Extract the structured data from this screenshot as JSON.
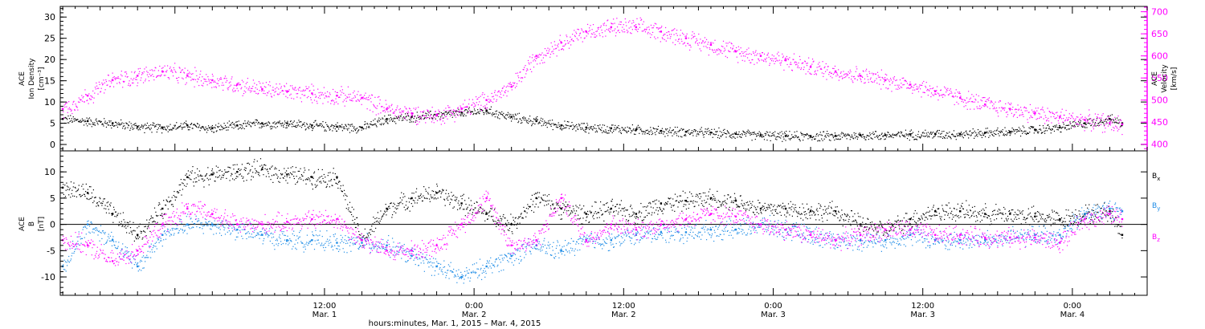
{
  "figure": {
    "x_axis_title": "hours:minutes, Mar.  1, 2015 – Mar.  4, 2015",
    "x_tick_labels": [
      {
        "time": "12:00",
        "date": "Mar. 1"
      },
      {
        "time": "0:00",
        "date": "Mar. 2"
      },
      {
        "time": "12:00",
        "date": "Mar. 2"
      },
      {
        "time": "0:00",
        "date": "Mar. 3"
      },
      {
        "time": "12:00",
        "date": "Mar. 3"
      },
      {
        "time": "0:00",
        "date": "Mar. 4"
      }
    ]
  },
  "chart_data": [
    {
      "type": "scatter",
      "panel": "top",
      "left_axis": {
        "lines": [
          "ACE",
          "Ion Density",
          "[cm⁻³]"
        ],
        "ylim": [
          -1.5,
          32.5
        ],
        "ticks": [
          0,
          5,
          10,
          15,
          20,
          25,
          30
        ]
      },
      "right_axis": {
        "lines": [
          "ACE",
          "Velocity",
          "[km/s]"
        ],
        "ylim": [
          385,
          712
        ],
        "ticks": [
          400,
          450,
          500,
          550,
          600,
          650,
          700
        ],
        "color": "#ff00ff"
      },
      "x_unit": "hours since Mar. 1 00:00",
      "xlim": [
        -9.2,
        78.0
      ],
      "series": [
        {
          "axis": "left",
          "color": "#000000",
          "x": [
            -9,
            -7,
            -5,
            -3,
            -1,
            1,
            3,
            5,
            7,
            9,
            11,
            13,
            15,
            17,
            19,
            21,
            23,
            25,
            27,
            29,
            31,
            33,
            35,
            37,
            39,
            41,
            43,
            45,
            47,
            49,
            51,
            53,
            55,
            57,
            59,
            61,
            63,
            65,
            67,
            69,
            71,
            73,
            75,
            76
          ],
          "values": [
            6,
            5.5,
            5,
            4.2,
            4,
            4.5,
            3.8,
            4.5,
            5,
            5,
            4.5,
            4.2,
            4,
            6,
            6.5,
            7,
            7.5,
            8,
            6.5,
            5.5,
            4.5,
            4,
            3.8,
            3.5,
            3.2,
            3,
            2.8,
            2.5,
            2.2,
            2,
            2,
            2,
            2.2,
            2.2,
            2.4,
            2.5,
            2.5,
            2.8,
            3,
            3.5,
            4,
            5,
            6,
            5
          ]
        },
        {
          "axis": "right",
          "color": "#ff00ff",
          "x": [
            -9,
            -7,
            -5,
            -3,
            -1,
            1,
            3,
            5,
            7,
            9,
            11,
            13,
            15,
            17,
            19,
            21,
            23,
            25,
            27,
            29,
            31,
            33,
            35,
            37,
            39,
            41,
            43,
            45,
            47,
            49,
            51,
            53,
            55,
            57,
            59,
            61,
            63,
            65,
            67,
            69,
            71,
            73,
            75,
            76
          ],
          "values": [
            480,
            510,
            545,
            555,
            565,
            555,
            545,
            535,
            525,
            520,
            515,
            510,
            505,
            480,
            470,
            465,
            480,
            500,
            530,
            600,
            630,
            655,
            665,
            665,
            655,
            640,
            625,
            610,
            600,
            590,
            575,
            565,
            555,
            545,
            535,
            520,
            505,
            490,
            480,
            470,
            462,
            455,
            448,
            445
          ]
        }
      ]
    },
    {
      "type": "scatter",
      "panel": "bottom",
      "left_axis": {
        "lines": [
          "ACE",
          "B",
          "[nT]"
        ],
        "ylim": [
          -13.5,
          14.0
        ],
        "ticks": [
          -10,
          -5,
          0,
          5,
          10
        ]
      },
      "zero_line": true,
      "x_unit": "hours since Mar. 1 00:00",
      "xlim": [
        -9.2,
        78.0
      ],
      "legend_position": "right",
      "series": [
        {
          "name": "Bx",
          "legend": {
            "main": "B",
            "sub": "x"
          },
          "color": "#000000",
          "x": [
            -9,
            -7,
            -5,
            -3,
            -1,
            1,
            3,
            5,
            7,
            9,
            11,
            13,
            15,
            17,
            19,
            21,
            23,
            25,
            27,
            29,
            31,
            33,
            35,
            37,
            39,
            41,
            43,
            45,
            47,
            49,
            51,
            53,
            55,
            57,
            59,
            61,
            63,
            65,
            67,
            69,
            71,
            73,
            75,
            76
          ],
          "values": [
            7,
            6,
            2,
            -2,
            3,
            9,
            9.5,
            10,
            10.5,
            9.5,
            9,
            9,
            -3,
            3,
            5,
            6,
            4,
            2,
            0,
            5,
            3,
            2,
            3,
            2,
            4,
            4.5,
            5,
            4.5,
            3,
            3,
            2.5,
            2.5,
            0,
            -1,
            1,
            2.5,
            2.5,
            2,
            2,
            1.5,
            1,
            2,
            2.5,
            -2
          ]
        },
        {
          "name": "By",
          "legend": {
            "main": "B",
            "sub": "y"
          },
          "color": "#1e8ce6",
          "x": [
            -9,
            -7,
            -5,
            -3,
            -1,
            1,
            3,
            5,
            7,
            9,
            11,
            13,
            15,
            17,
            19,
            21,
            23,
            25,
            27,
            29,
            31,
            33,
            35,
            37,
            39,
            41,
            43,
            45,
            47,
            49,
            51,
            53,
            55,
            57,
            59,
            61,
            63,
            65,
            67,
            69,
            71,
            73,
            75,
            76
          ],
          "values": [
            -8,
            0,
            -3,
            -8,
            -2,
            0,
            0,
            -1,
            -2,
            -3,
            -3,
            -3.5,
            -3.5,
            -4,
            -6,
            -8,
            -10,
            -8,
            -6,
            -4,
            -5,
            -3,
            -3,
            -2,
            -1.5,
            -1.5,
            -1,
            -1,
            0,
            -1,
            -2,
            -3,
            -3,
            -3,
            -2,
            -3,
            -3,
            -3,
            -2.5,
            -2,
            -2,
            2,
            3,
            2.5
          ]
        },
        {
          "name": "Bz",
          "legend": {
            "main": "B",
            "sub": "z"
          },
          "color": "#ff00ff",
          "x": [
            -9,
            -7,
            -5,
            -3,
            -1,
            1,
            3,
            5,
            7,
            9,
            11,
            13,
            15,
            17,
            19,
            21,
            23,
            25,
            27,
            29,
            31,
            33,
            35,
            37,
            39,
            41,
            43,
            45,
            47,
            49,
            51,
            53,
            55,
            57,
            59,
            61,
            63,
            65,
            67,
            69,
            71,
            73,
            75,
            76
          ],
          "values": [
            -3,
            -4,
            -7,
            -5,
            0,
            3,
            2,
            0,
            0,
            0.5,
            1,
            1,
            -3,
            -5,
            -5,
            -4,
            0,
            5,
            -4,
            -3,
            5,
            -3,
            0,
            -1,
            0,
            1,
            2,
            1.5,
            0,
            -1,
            -2,
            -3,
            -2,
            -1,
            -1,
            -2,
            -2,
            -2.5,
            -2.5,
            -2.5,
            -3.5,
            1,
            2,
            1
          ]
        }
      ]
    }
  ]
}
